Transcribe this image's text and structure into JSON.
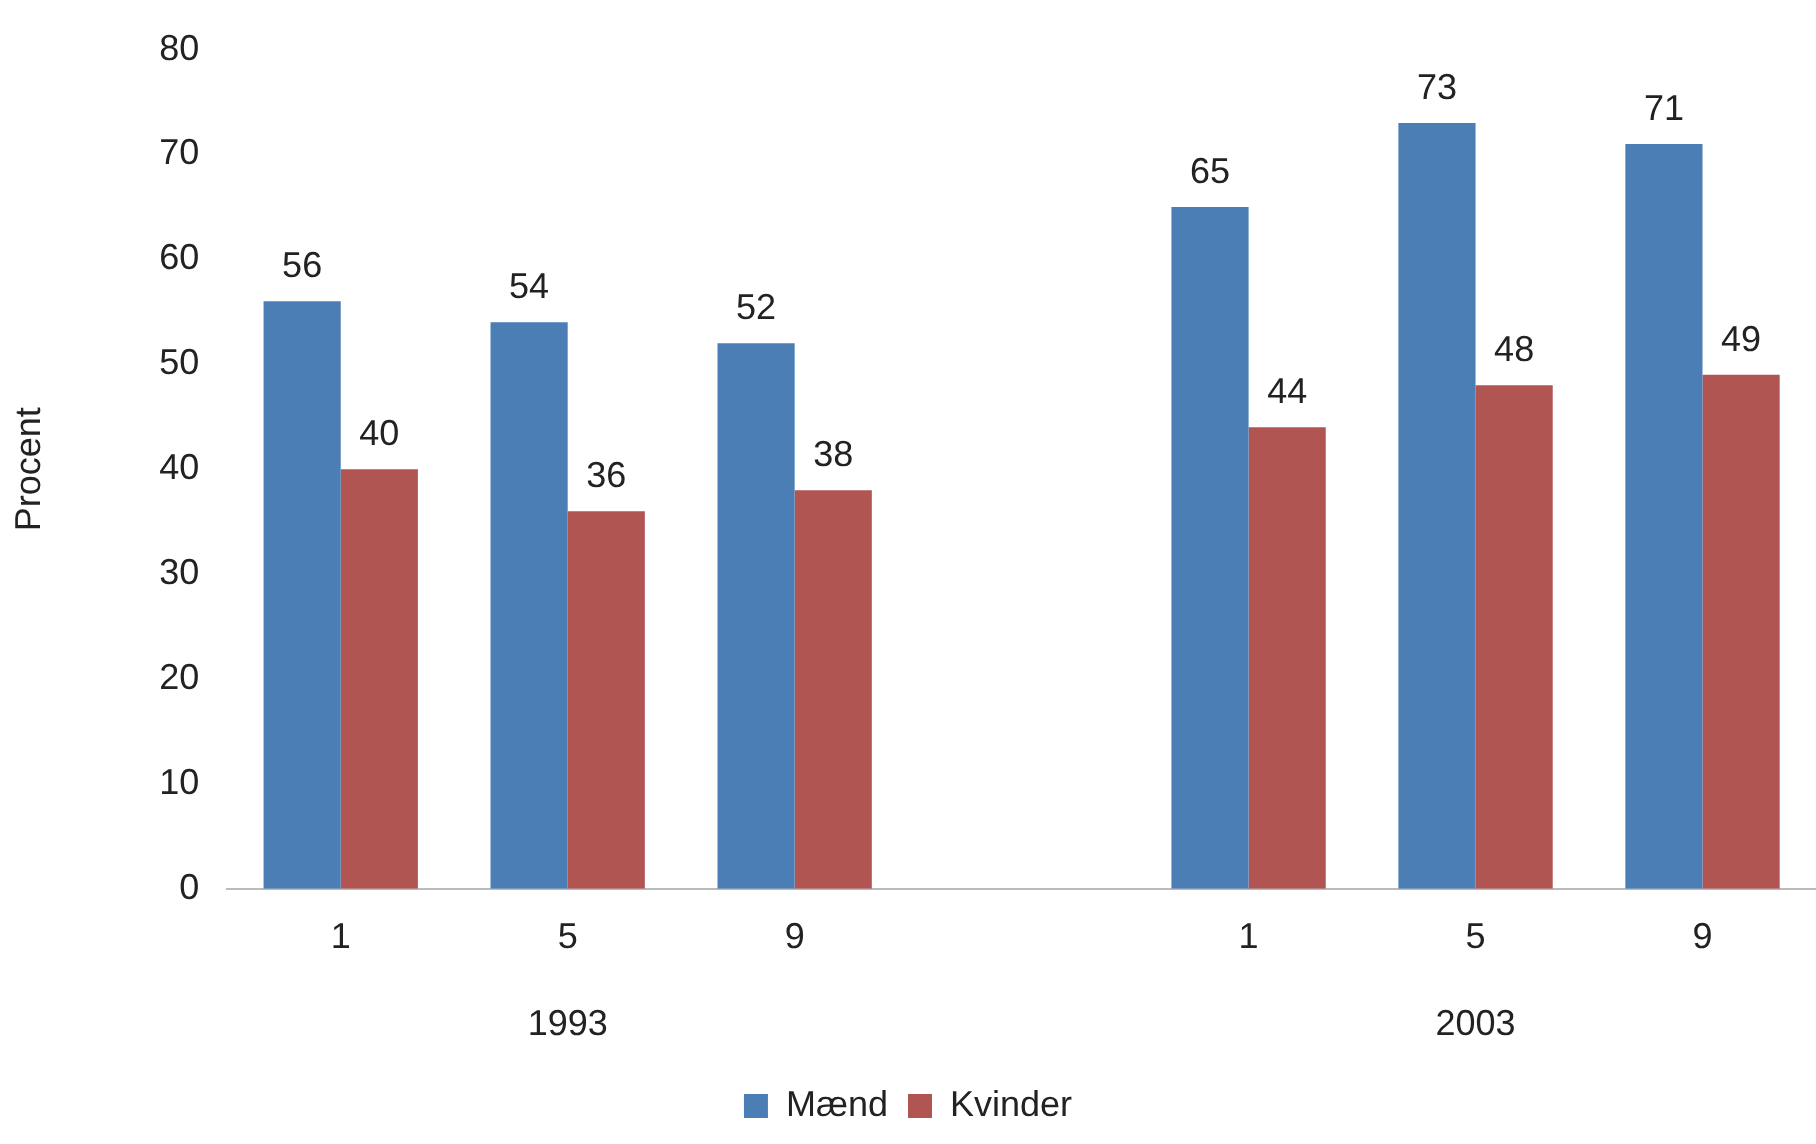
{
  "chart_data": {
    "type": "bar",
    "ylabel": "Procent",
    "categories": [
      "1",
      "5",
      "9",
      null,
      "1",
      "5",
      "9"
    ],
    "series": [
      {
        "name": "Mænd",
        "color": "#4a7eb5",
        "values": [
          56,
          54,
          52,
          null,
          65,
          73,
          71
        ]
      },
      {
        "name": "Kvinder",
        "color": "#b15553",
        "values": [
          40,
          36,
          38,
          null,
          44,
          48,
          49
        ]
      }
    ],
    "ylim": [
      0,
      80
    ],
    "yticks": [
      0,
      10,
      20,
      30,
      40,
      50,
      60,
      70,
      80
    ],
    "grid": false,
    "legend": "bottom",
    "data_labels": true,
    "annotations": [
      "1993",
      "2003"
    ]
  }
}
